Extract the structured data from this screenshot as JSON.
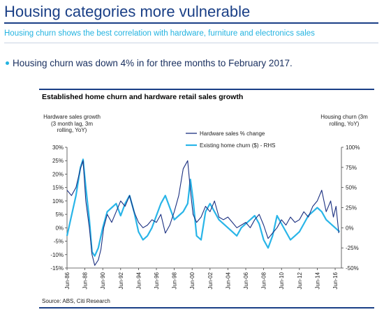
{
  "slide": {
    "title": "Housing categories more vulnerable",
    "subtitle": "Housing churn shows the best correlation with hardware, furniture and electronics sales",
    "bullet": "Housing churn was down 4% in for three months to February 2017."
  },
  "chart_data": {
    "type": "line",
    "title": "Established home churn and hardware retail sales growth",
    "ylabel_left": "Hardware sales growth (3 month lag, 3m rolling, YoY)",
    "ylabel_right": "Housing churn (3m rolling, YoY)",
    "source": "Source: ABS, Citi Research",
    "y_left": {
      "ticks": [
        "30%",
        "25%",
        "20%",
        "15%",
        "10%",
        "5%",
        "0%",
        "-5%",
        "-10%",
        "-15%"
      ],
      "range": [
        -15,
        30
      ]
    },
    "y_right": {
      "ticks": [
        "100%",
        "75%",
        "50%",
        "25%",
        "0%",
        "-25%",
        "-50%"
      ],
      "range": [
        -50,
        100
      ]
    },
    "x_ticks": [
      "Jun-86",
      "Jun-88",
      "Jun-90",
      "Jun-92",
      "Jun-94",
      "Jun-96",
      "Jun-98",
      "Jun-00",
      "Jun-02",
      "Jun-04",
      "Jun-06",
      "Jun-08",
      "Jun-10",
      "Jun-12",
      "Jun-14",
      "Jun-16"
    ],
    "x_range": [
      1986.5,
      2017.2
    ],
    "legend": [
      "Hardware sales % change",
      "Existing home churn ($) - RHS"
    ],
    "colors": {
      "hardware": "#1a2f80",
      "churn": "#29b5e8"
    },
    "series": [
      {
        "name": "Hardware sales % change",
        "axis": "left",
        "x": [
          1986.5,
          1987.0,
          1987.5,
          1988.0,
          1988.3,
          1988.6,
          1989.0,
          1989.3,
          1989.6,
          1990.0,
          1990.3,
          1990.6,
          1991.0,
          1991.5,
          1992.0,
          1992.5,
          1993.0,
          1993.5,
          1994.0,
          1994.5,
          1995.0,
          1995.5,
          1996.0,
          1996.5,
          1997.0,
          1997.5,
          1998.0,
          1998.5,
          1999.0,
          1999.5,
          2000.0,
          2000.3,
          2000.6,
          2001.0,
          2001.5,
          2002.0,
          2002.5,
          2003.0,
          2003.5,
          2004.0,
          2004.5,
          2005.0,
          2005.5,
          2006.0,
          2006.5,
          2007.0,
          2007.5,
          2008.0,
          2008.5,
          2009.0,
          2009.5,
          2010.0,
          2010.5,
          2011.0,
          2011.5,
          2012.0,
          2012.5,
          2013.0,
          2013.5,
          2014.0,
          2014.5,
          2015.0,
          2015.5,
          2016.0,
          2016.3,
          2016.6,
          2016.9
        ],
        "y": [
          14,
          12,
          15,
          22,
          25,
          10,
          0,
          -10,
          -14,
          -12,
          -8,
          0,
          5,
          2,
          6,
          10,
          8,
          12,
          6,
          2,
          0,
          1,
          3,
          2,
          5,
          -2,
          1,
          6,
          12,
          22,
          25,
          14,
          5,
          2,
          4,
          8,
          6,
          10,
          4,
          3,
          4,
          2,
          0,
          1,
          2,
          0,
          3,
          5,
          1,
          -4,
          -2,
          0,
          3,
          1,
          4,
          2,
          3,
          6,
          4,
          8,
          10,
          14,
          6,
          10,
          4,
          8,
          -2
        ]
      },
      {
        "name": "Existing home churn ($) - RHS",
        "axis": "right",
        "x": [
          1986.5,
          1987.0,
          1987.5,
          1988.0,
          1988.3,
          1988.6,
          1989.0,
          1989.3,
          1989.6,
          1990.0,
          1990.5,
          1991.0,
          1991.5,
          1992.0,
          1992.5,
          1993.0,
          1993.5,
          1994.0,
          1994.5,
          1995.0,
          1995.5,
          1996.0,
          1996.5,
          1997.0,
          1997.5,
          1998.0,
          1998.5,
          1999.0,
          1999.5,
          2000.0,
          2000.3,
          2000.6,
          2001.0,
          2001.5,
          2002.0,
          2002.5,
          2003.0,
          2003.5,
          2004.0,
          2004.5,
          2005.0,
          2005.5,
          2006.0,
          2006.5,
          2007.0,
          2007.5,
          2008.0,
          2008.5,
          2009.0,
          2009.5,
          2010.0,
          2010.5,
          2011.0,
          2011.5,
          2012.0,
          2012.5,
          2013.0,
          2013.5,
          2014.0,
          2014.5,
          2015.0,
          2015.5,
          2016.0,
          2016.5,
          2017.0
        ],
        "y": [
          -10,
          15,
          40,
          75,
          85,
          50,
          10,
          -30,
          -35,
          -25,
          0,
          20,
          25,
          30,
          15,
          30,
          40,
          20,
          -5,
          -15,
          -10,
          0,
          15,
          30,
          40,
          25,
          10,
          15,
          20,
          30,
          60,
          35,
          -10,
          -15,
          20,
          30,
          20,
          10,
          5,
          0,
          -5,
          -10,
          0,
          5,
          10,
          15,
          5,
          -15,
          -25,
          -10,
          15,
          5,
          -5,
          -15,
          -10,
          -5,
          5,
          15,
          20,
          25,
          20,
          10,
          5,
          0,
          -5
        ]
      }
    ]
  }
}
